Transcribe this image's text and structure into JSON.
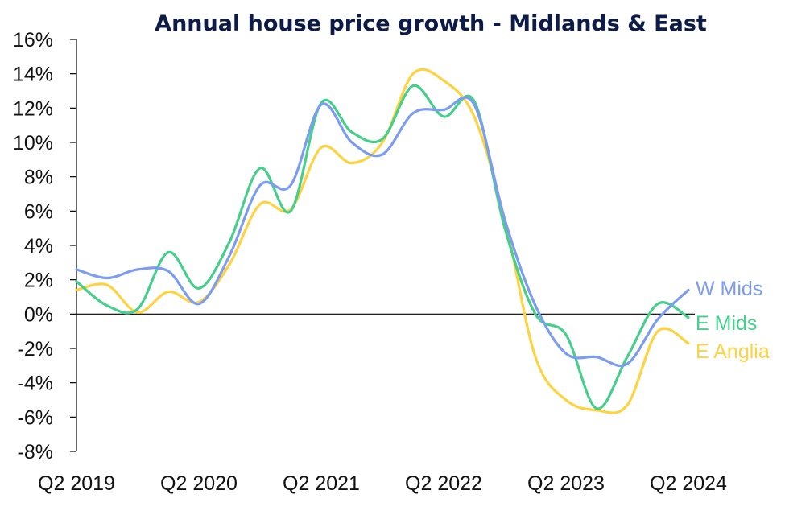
{
  "chart_data": {
    "type": "line",
    "title": "Annual house price growth - Midlands & East",
    "xlabel": "",
    "ylabel": "",
    "ylim": [
      -8,
      16
    ],
    "yticks": [
      16,
      14,
      12,
      10,
      8,
      6,
      4,
      2,
      0,
      -2,
      -4,
      -6,
      -8
    ],
    "ytick_labels": [
      "16%",
      "14%",
      "12%",
      "10%",
      "8%",
      "6%",
      "4%",
      "2%",
      "0%",
      "-2%",
      "-4%",
      "-6%",
      "-8%"
    ],
    "x": [
      "Q2 2019",
      "Q3 2019",
      "Q4 2019",
      "Q1 2020",
      "Q2 2020",
      "Q3 2020",
      "Q4 2020",
      "Q1 2021",
      "Q2 2021",
      "Q3 2021",
      "Q4 2021",
      "Q1 2022",
      "Q2 2022",
      "Q3 2022",
      "Q4 2022",
      "Q1 2023",
      "Q2 2023",
      "Q3 2023",
      "Q4 2023",
      "Q1 2024",
      "Q2 2024"
    ],
    "xtick_labels": [
      "Q2 2019",
      "Q2 2020",
      "Q2 2021",
      "Q2 2022",
      "Q2 2023",
      "Q2 2024"
    ],
    "xtick_positions": [
      "Q2 2019",
      "Q2 2020",
      "Q2 2021",
      "Q2 2022",
      "Q2 2023",
      "Q2 2024"
    ],
    "grid": false,
    "zero_line": true,
    "legend": "inline-right",
    "series": [
      {
        "name": "W Mids",
        "color": "#7b9cf2",
        "values": [
          2.6,
          2.1,
          2.6,
          2.5,
          0.6,
          3.4,
          7.5,
          7.5,
          12.2,
          10.0,
          9.3,
          11.7,
          11.9,
          12.2,
          5.5,
          0.5,
          -2.3,
          -2.5,
          -2.9,
          -0.3,
          1.4
        ]
      },
      {
        "name": "E Mids",
        "color": "#45cf8a",
        "values": [
          1.9,
          0.5,
          0.3,
          3.6,
          1.5,
          4.2,
          8.5,
          6.0,
          12.3,
          10.6,
          10.2,
          13.3,
          11.5,
          12.4,
          5.0,
          0.0,
          -1.2,
          -5.5,
          -2.5,
          0.6,
          -0.2
        ]
      },
      {
        "name": "E Anglia",
        "color": "#ffd23f",
        "values": [
          1.4,
          1.7,
          0.1,
          1.3,
          0.7,
          2.9,
          6.4,
          6.1,
          9.7,
          8.8,
          10.0,
          14.0,
          13.6,
          11.5,
          5.5,
          -2.5,
          -5.0,
          -5.6,
          -5.3,
          -1.0,
          -1.7
        ]
      }
    ]
  }
}
